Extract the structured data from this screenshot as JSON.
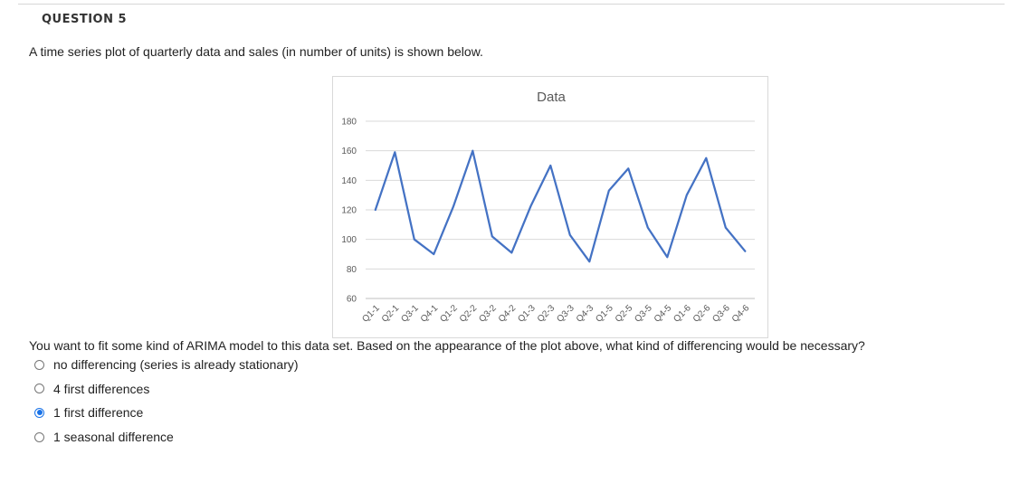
{
  "question": {
    "number": "QUESTION 5",
    "intro": "A time series plot of quarterly data and sales (in number of units) is shown below.",
    "prompt": "You want to fit some kind of ARIMA model to this data set. Based on the appearance of the plot above, what kind of differencing would be necessary?",
    "options": [
      {
        "label": "no differencing (series is already stationary)",
        "selected": false
      },
      {
        "label": "4 first differences",
        "selected": false
      },
      {
        "label": "1 first difference",
        "selected": true
      },
      {
        "label": "1 seasonal difference",
        "selected": false
      }
    ]
  },
  "chart_data": {
    "type": "line",
    "title": "Data",
    "xlabel": "",
    "ylabel": "",
    "ylim": [
      60,
      180
    ],
    "yticks": [
      60,
      80,
      100,
      120,
      140,
      160,
      180
    ],
    "grid": true,
    "legend": "none",
    "line_color": "#4472c4",
    "categories": [
      "Q1-1",
      "Q2-1",
      "Q3-1",
      "Q4-1",
      "Q1-2",
      "Q2-2",
      "Q3-2",
      "Q4-2",
      "Q1-3",
      "Q2-3",
      "Q3-3",
      "Q4-3",
      "Q1-5",
      "Q2-5",
      "Q3-5",
      "Q4-5",
      "Q1-6",
      "Q2-6",
      "Q3-6",
      "Q4-6"
    ],
    "values": [
      120,
      159,
      100,
      90,
      122,
      160,
      102,
      91,
      123,
      150,
      103,
      85,
      133,
      148,
      108,
      88,
      130,
      155,
      108,
      92
    ]
  }
}
